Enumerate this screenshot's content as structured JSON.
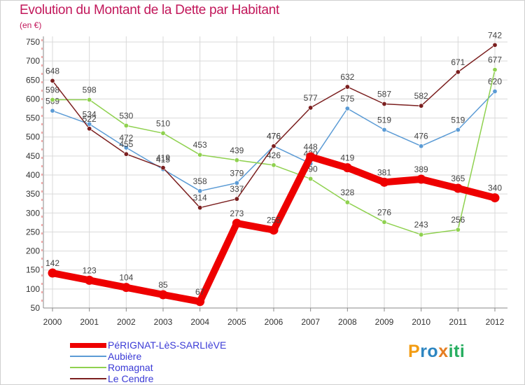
{
  "title": "Evolution du Montant de la Dette par Habitant",
  "unit": "(en €)",
  "brand": {
    "letters": [
      {
        "ch": "P",
        "color": "#f39c12"
      },
      {
        "ch": "r",
        "color": "#2e86c1"
      },
      {
        "ch": "o",
        "color": "#2e86c1"
      },
      {
        "ch": "x",
        "color": "#e67e22"
      },
      {
        "ch": "i",
        "color": "#27ae60"
      },
      {
        "ch": "t",
        "color": "#27ae60"
      },
      {
        "ch": "i",
        "color": "#27ae60"
      }
    ]
  },
  "chart_data": {
    "type": "line",
    "categories": [
      "2000",
      "2001",
      "2002",
      "2003",
      "2004",
      "2005",
      "2006",
      "2007",
      "2008",
      "2009",
      "2010",
      "2011",
      "2012"
    ],
    "ylim": [
      50,
      750
    ],
    "yticks": [
      50,
      100,
      150,
      200,
      250,
      300,
      350,
      400,
      450,
      500,
      550,
      600,
      650,
      700,
      750
    ],
    "grid": true,
    "legend_position": "bottom",
    "series": [
      {
        "name": "PéRIGNAT-LèS-SARLIèVE",
        "color": "#ee0000",
        "thick": true,
        "values": [
          142,
          123,
          104,
          85,
          67,
          273,
          255,
          448,
          419,
          381,
          389,
          365,
          340
        ]
      },
      {
        "name": "Aubière",
        "color": "#5b9bd5",
        "thick": false,
        "values": [
          569,
          534,
          472,
          415,
          358,
          379,
          476,
          430,
          575,
          519,
          476,
          519,
          620
        ]
      },
      {
        "name": "Romagnat",
        "color": "#8fd14f",
        "thick": false,
        "values": [
          598,
          598,
          530,
          510,
          453,
          439,
          426,
          390,
          328,
          276,
          243,
          256,
          677
        ]
      },
      {
        "name": "Le Cendre",
        "color": "#7b1f1f",
        "thick": false,
        "values": [
          648,
          522,
          455,
          419,
          314,
          337,
          476,
          577,
          632,
          587,
          582,
          671,
          742
        ]
      }
    ]
  }
}
